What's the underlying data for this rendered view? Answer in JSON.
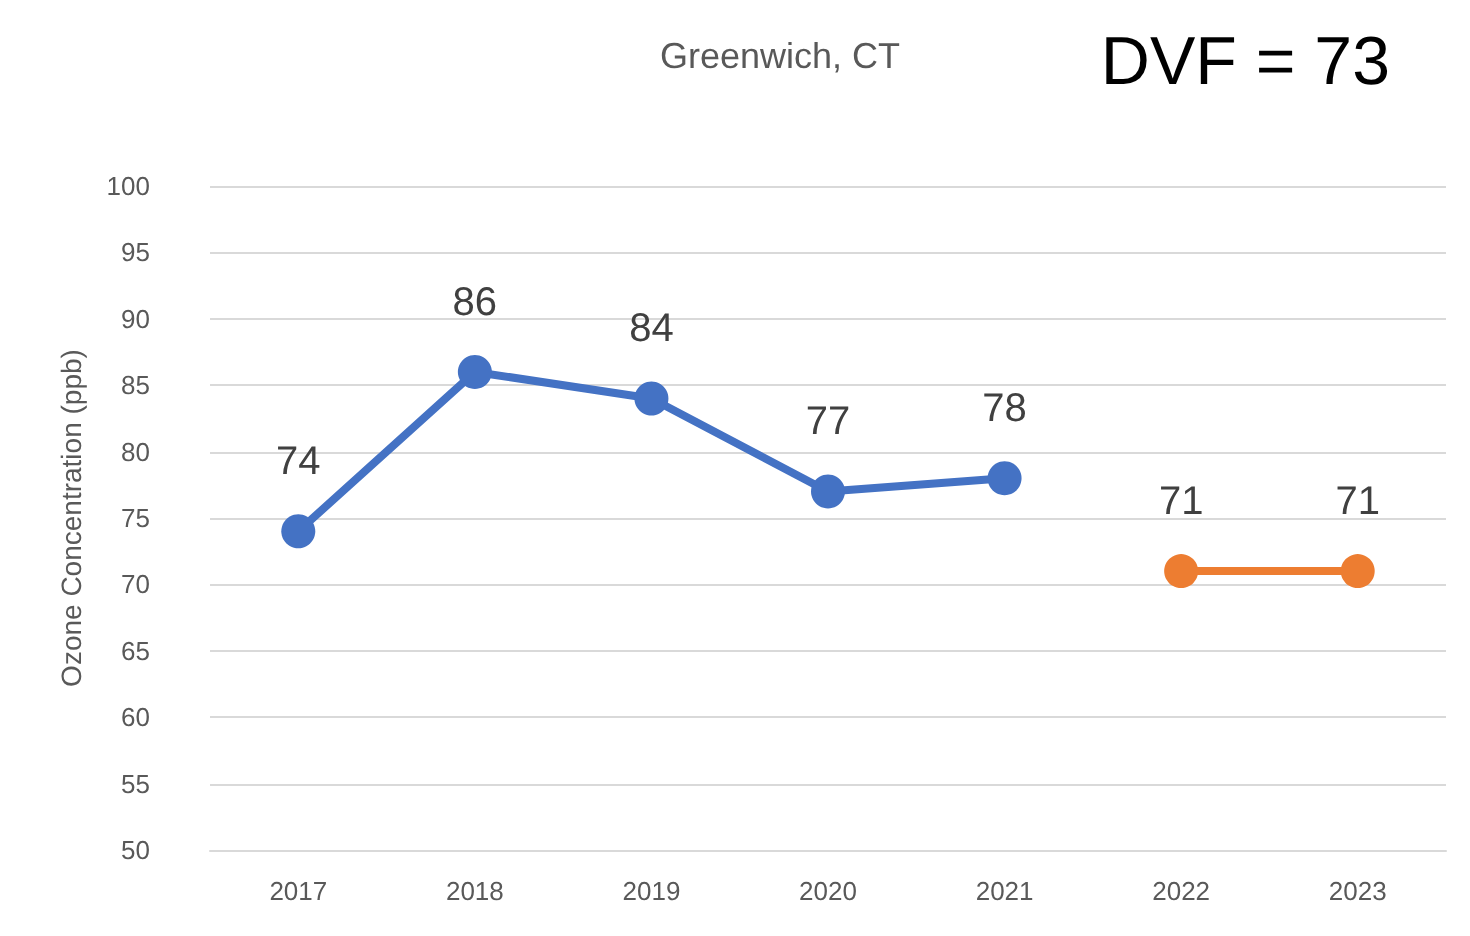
{
  "chart_data": {
    "type": "line",
    "title": "Greenwich, CT",
    "ylabel": "Ozone Concentration (ppb)",
    "annotations": [
      "DVF = 73"
    ],
    "categories": [
      "2017",
      "2018",
      "2019",
      "2020",
      "2021",
      "2022",
      "2023"
    ],
    "series": [
      {
        "color": "#4472c4",
        "values": [
          74,
          86,
          84,
          77,
          78,
          null,
          null
        ]
      },
      {
        "color": "#ed7d31",
        "values": [
          null,
          null,
          null,
          null,
          null,
          71,
          71
        ]
      }
    ],
    "ylim": [
      50,
      100
    ],
    "yticks": [
      50,
      55,
      60,
      65,
      70,
      75,
      80,
      85,
      90,
      95,
      100
    ],
    "grid": "y",
    "marker": "circle",
    "line_style": "solid",
    "data_labels": true
  }
}
